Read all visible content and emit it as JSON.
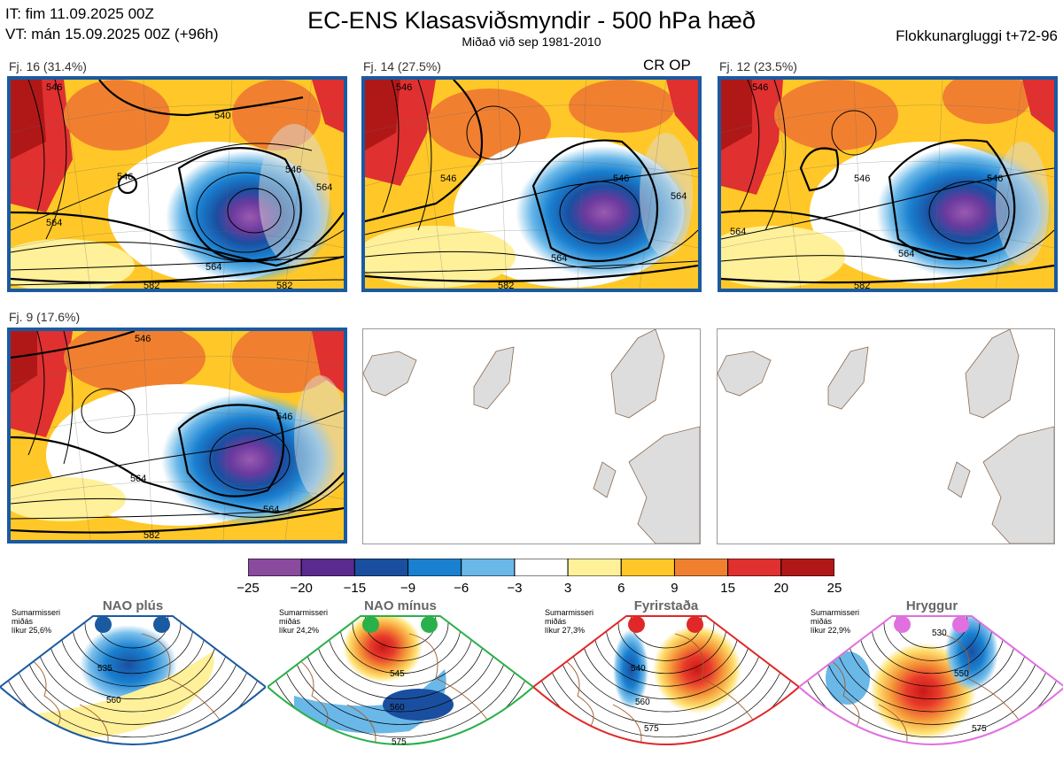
{
  "header": {
    "it_line": "IT: fim 11.09.2025 00Z",
    "vt_line": "VT: mán 15.09.2025 00Z  (+96h)",
    "title": "EC-ENS Klasasviðsmyndir - 500 hPa hæð",
    "subtitle": "Miðað við sep 1981-2010",
    "window": "Flokkunargluggi t+72-96"
  },
  "panels": [
    {
      "label": "Fj. 16 (31.4%)",
      "tag": "",
      "contours": [
        "546",
        "546",
        "540",
        "546",
        "564",
        "564",
        "564",
        "582",
        "582"
      ]
    },
    {
      "label": "Fj. 14 (27.5%)",
      "tag": "CR OP",
      "contours": [
        "546",
        "546",
        "546",
        "564",
        "564",
        "582",
        "582"
      ]
    },
    {
      "label": "Fj. 12 (23.5%)",
      "tag": "",
      "contours": [
        "546",
        "546",
        "546",
        "564",
        "564",
        "582",
        "582"
      ]
    },
    {
      "label": "Fj. 9 (17.6%)",
      "tag": "",
      "contours": [
        "546",
        "546",
        "564",
        "564",
        "582",
        "582"
      ]
    }
  ],
  "colorbar": {
    "ticks": [
      "−25",
      "−20",
      "−15",
      "−9",
      "−6",
      "−3",
      "3",
      "6",
      "9",
      "15",
      "20",
      "25"
    ],
    "colors": [
      "#8a4a9e",
      "#5a2a8e",
      "#1a4fa0",
      "#1a80d0",
      "#6ab8e8",
      "#ffffff",
      "#fff09a",
      "#ffc828",
      "#f08030",
      "#e03030",
      "#b01818"
    ]
  },
  "regimes": [
    {
      "name": "NAO plús",
      "season": "Sumarmisseri",
      "detail": "miðás",
      "prob": "líkur 25,6%",
      "color": "#1a5aa0",
      "labels": [
        "535",
        "560"
      ]
    },
    {
      "name": "NAO mínus",
      "season": "Sumarmisseri",
      "detail": "miðás",
      "prob": "líkur 24,2%",
      "color": "#2ab04a",
      "labels": [
        "545",
        "560",
        "575"
      ]
    },
    {
      "name": "Fyrirstaða",
      "season": "Sumarmisseri",
      "detail": "miðás",
      "prob": "líkur 27,3%",
      "color": "#e02828",
      "labels": [
        "540",
        "560",
        "575"
      ]
    },
    {
      "name": "Hryggur",
      "season": "Sumarmisseri",
      "detail": "miðás",
      "prob": "líkur 22,9%",
      "color": "#e070e0",
      "labels": [
        "530",
        "550",
        "575"
      ]
    }
  ]
}
